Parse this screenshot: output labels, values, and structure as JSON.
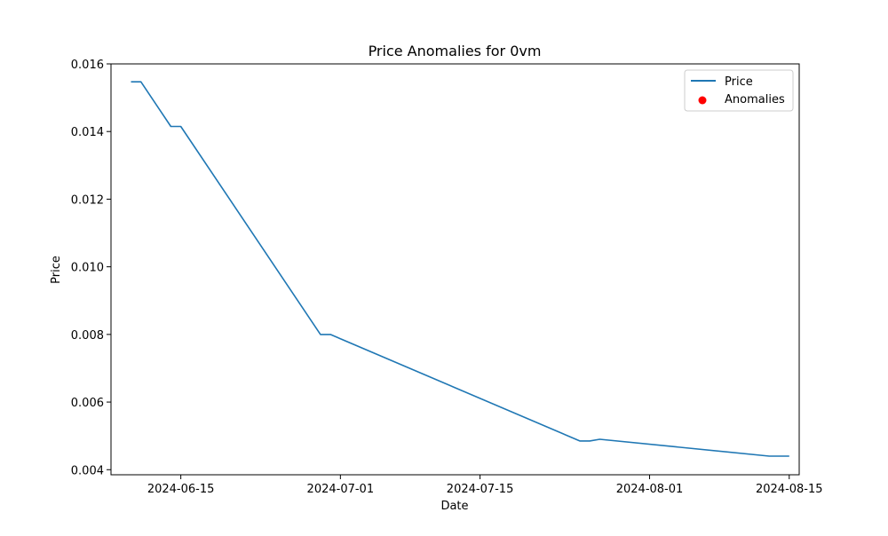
{
  "chart_data": {
    "type": "line",
    "title": "Price Anomalies for 0vm",
    "xlabel": "Date",
    "ylabel": "Price",
    "x_axis_type": "date",
    "xlim": [
      "2024-06-08",
      "2024-08-16"
    ],
    "ylim": [
      0.00385,
      0.016
    ],
    "x_ticks": [
      "2024-06-15",
      "2024-07-01",
      "2024-07-15",
      "2024-08-01",
      "2024-08-15"
    ],
    "y_ticks": [
      "0.004",
      "0.006",
      "0.008",
      "0.010",
      "0.012",
      "0.014",
      "0.016"
    ],
    "y_tick_values": [
      0.004,
      0.006,
      0.008,
      0.01,
      0.012,
      0.014,
      0.016
    ],
    "grid": false,
    "legend_position": "top-right",
    "series": [
      {
        "name": "Price",
        "kind": "line",
        "color": "#1f77b4",
        "x": [
          "2024-06-10",
          "2024-06-11",
          "2024-06-14",
          "2024-06-15",
          "2024-06-29",
          "2024-06-30",
          "2024-07-25",
          "2024-07-26",
          "2024-07-27",
          "2024-08-13",
          "2024-08-15"
        ],
        "y": [
          0.01547,
          0.01547,
          0.01415,
          0.01415,
          0.008,
          0.008,
          0.00485,
          0.00485,
          0.0049,
          0.0044,
          0.0044
        ]
      },
      {
        "name": "Anomalies",
        "kind": "scatter",
        "color": "#ff0000",
        "x": [],
        "y": []
      }
    ]
  }
}
